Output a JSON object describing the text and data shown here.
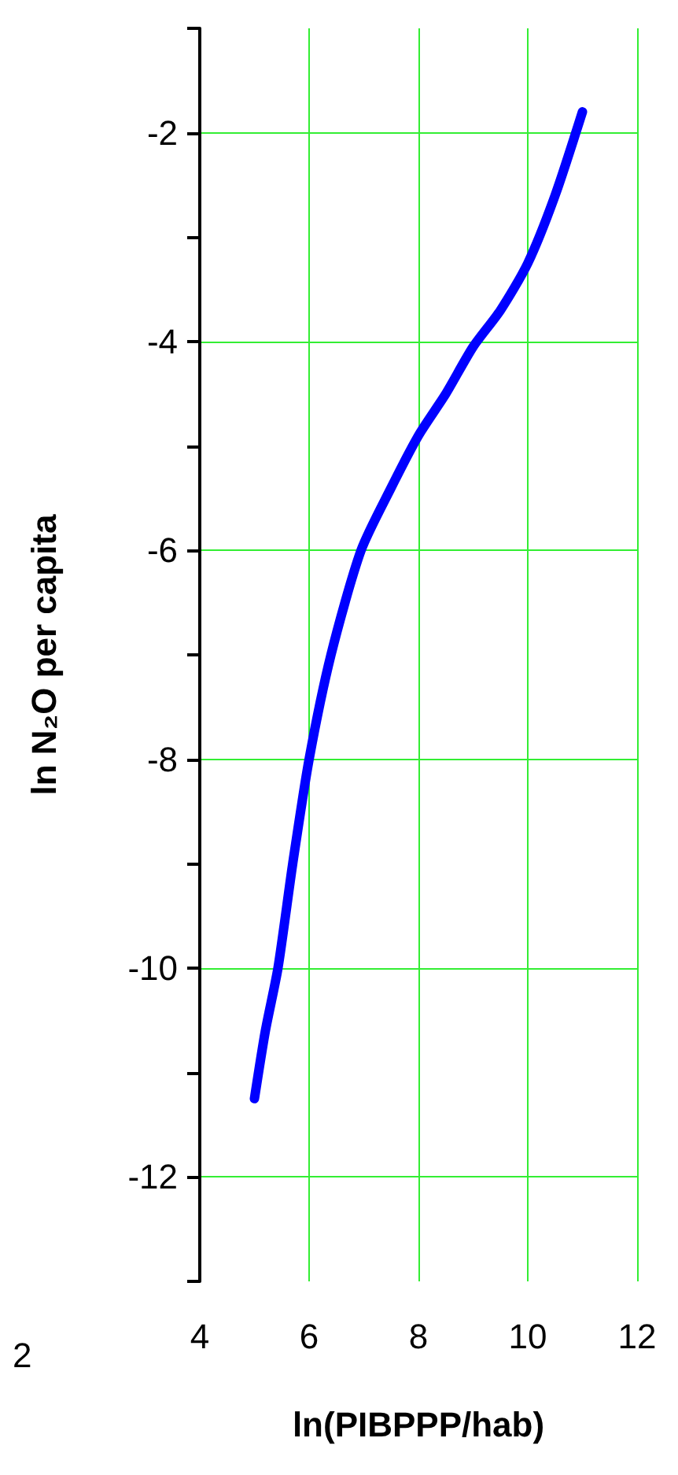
{
  "chart_data": {
    "type": "line",
    "xlabel": "ln(PIBPPP/hab)",
    "ylabel": "ln N₂O per capita",
    "annotations": [
      "2"
    ],
    "x": [
      5,
      5.2,
      5.43,
      5.7,
      6,
      6.4,
      6.95,
      7.5,
      8,
      8.5,
      9,
      9.5,
      10,
      10.5,
      11
    ],
    "series": [
      {
        "color": "#0000ff",
        "values": [
          -11.25,
          -10.6,
          -10,
          -9,
          -8,
          -7,
          -6,
          -5.4,
          -4.9,
          -4.5,
          -4.05,
          -3.7,
          -3.25,
          -2.6,
          -1.8
        ]
      }
    ],
    "xlim": [
      4,
      12
    ],
    "xticks": [
      4,
      6,
      8,
      10,
      12
    ],
    "ylim": [
      -13,
      -1
    ],
    "yticks": [
      {
        "value": -13,
        "label": null
      },
      -12,
      {
        "value": -11,
        "label": null
      },
      -10,
      {
        "value": -9,
        "label": null
      },
      -8,
      {
        "value": -7,
        "label": null
      },
      -6,
      {
        "value": -5,
        "label": null
      },
      -4,
      {
        "value": -3,
        "label": null
      },
      -2,
      {
        "value": -1,
        "label": null
      }
    ],
    "grid": true,
    "marker": "none",
    "line_style": "solid"
  }
}
